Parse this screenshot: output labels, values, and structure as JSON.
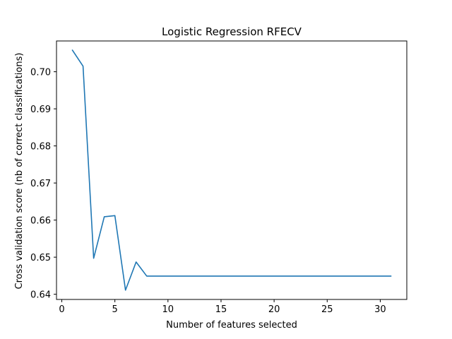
{
  "chart_data": {
    "type": "line",
    "title": "Logistic Regression RFECV",
    "xlabel": "Number of features selected",
    "ylabel": "Cross validation score (nb of correct classifications)",
    "xlim": [
      -0.5,
      32.5
    ],
    "ylim": [
      0.6386,
      0.7083
    ],
    "x_ticks": [
      0,
      5,
      10,
      15,
      20,
      25,
      30
    ],
    "y_ticks": [
      0.64,
      0.65,
      0.66,
      0.67,
      0.68,
      0.69,
      0.7
    ],
    "y_tick_labels": [
      "0.64",
      "0.65",
      "0.66",
      "0.67",
      "0.68",
      "0.69",
      "0.70"
    ],
    "grid": false,
    "series": [
      {
        "color": "#1f77b4",
        "x": [
          1,
          2,
          3,
          4,
          5,
          6,
          7,
          8,
          9,
          10,
          11,
          12,
          13,
          14,
          15,
          16,
          17,
          18,
          19,
          20,
          21,
          22,
          23,
          24,
          25,
          26,
          27,
          28,
          29,
          30,
          31
        ],
        "y": [
          0.7058,
          0.7015,
          0.6497,
          0.6609,
          0.6612,
          0.6411,
          0.6487,
          0.6449,
          0.6449,
          0.6449,
          0.6449,
          0.6449,
          0.6449,
          0.6449,
          0.6449,
          0.6449,
          0.6449,
          0.6449,
          0.6449,
          0.6449,
          0.6449,
          0.6449,
          0.6449,
          0.6449,
          0.6449,
          0.6449,
          0.6449,
          0.6449,
          0.6449,
          0.6449,
          0.6449
        ]
      }
    ]
  }
}
